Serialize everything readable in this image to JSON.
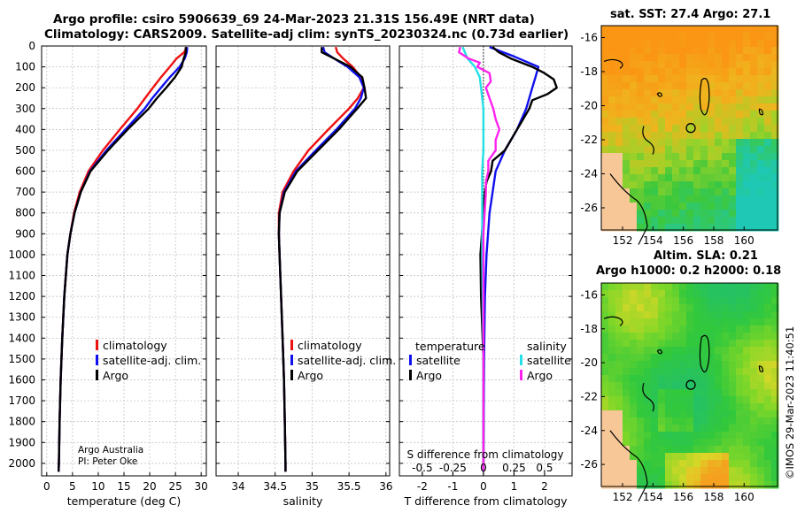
{
  "header": {
    "line1": "Argo profile: csiro 5906639_69 24-Mar-2023 21.31S 156.49E (NRT data)",
    "line2": "Climatology: CARS2009. Satellite-adj clim: synTS_20230324.nc (0.73d earlier)"
  },
  "colors": {
    "climatology": "#ee1111",
    "satellite": "#1010ee",
    "argo": "#000000",
    "sat_salinity": "#22e0e6",
    "argo_salinity": "#ff22ee",
    "land": "#f7c797"
  },
  "chart_data": [
    {
      "type": "line",
      "id": "temperature",
      "xlabel": "temperature (deg C)",
      "ylabel": "",
      "xlim": [
        -1,
        31
      ],
      "ylim": [
        2060,
        0
      ],
      "xticks": [
        0,
        5,
        10,
        15,
        20,
        25,
        30
      ],
      "yticks": [
        0,
        100,
        200,
        300,
        400,
        500,
        600,
        700,
        800,
        900,
        1000,
        1100,
        1200,
        1300,
        1400,
        1500,
        1600,
        1700,
        1800,
        1900,
        2000
      ],
      "legend": [
        "climatology",
        "satellite-adj. clim.",
        "Argo"
      ],
      "legend_position": "lower-right",
      "annotations": [
        "Argo Australia",
        "PI: Peter Oke"
      ],
      "series": [
        {
          "name": "climatology",
          "color": "#ee1111",
          "depth": [
            5,
            30,
            60,
            100,
            150,
            200,
            250,
            300,
            400,
            500,
            600,
            700,
            800,
            900,
            1000,
            1200,
            1400,
            1600,
            1800,
            2000,
            2040
          ],
          "values": [
            27.2,
            26.7,
            25.2,
            23.9,
            22.2,
            20.6,
            19.1,
            17.6,
            14.2,
            10.9,
            8.1,
            6.4,
            5.3,
            4.6,
            4.0,
            3.4,
            3.0,
            2.7,
            2.5,
            2.35,
            2.3
          ]
        },
        {
          "name": "satellite-adj. clim.",
          "color": "#1010ee",
          "depth": [
            5,
            30,
            60,
            100,
            150,
            200,
            250,
            300,
            400,
            500,
            600,
            700,
            800,
            900,
            1000,
            1200,
            1400,
            1600,
            1800,
            2000,
            2040
          ],
          "values": [
            27.3,
            27.2,
            26.8,
            25.8,
            23.9,
            22.2,
            20.5,
            19.0,
            15.3,
            11.6,
            8.4,
            6.6,
            5.4,
            4.6,
            4.0,
            3.4,
            3.0,
            2.7,
            2.5,
            2.35,
            2.3
          ]
        },
        {
          "name": "Argo",
          "color": "#000000",
          "depth": [
            5,
            30,
            60,
            100,
            150,
            200,
            250,
            300,
            400,
            500,
            600,
            700,
            800,
            900,
            1000,
            1200,
            1400,
            1600,
            1800,
            2000,
            2040
          ],
          "values": [
            27.0,
            27.0,
            26.6,
            26.2,
            24.9,
            23.2,
            21.4,
            19.8,
            15.7,
            11.9,
            8.5,
            6.6,
            5.4,
            4.6,
            4.0,
            3.4,
            3.0,
            2.7,
            2.5,
            2.35,
            2.3
          ]
        }
      ]
    },
    {
      "type": "line",
      "id": "salinity",
      "xlabel": "salinity",
      "xlim": [
        33.7,
        36.05
      ],
      "ylim": [
        2060,
        0
      ],
      "xticks": [
        34,
        34.5,
        35,
        35.5,
        36
      ],
      "legend": [
        "climatology",
        "satellite-adj. clim.",
        "Argo"
      ],
      "legend_position": "lower-right",
      "series": [
        {
          "name": "climatology",
          "color": "#ee1111",
          "depth": [
            5,
            30,
            60,
            100,
            150,
            200,
            250,
            300,
            400,
            500,
            600,
            700,
            800,
            900,
            1000,
            1200,
            1400,
            1600,
            1800,
            2000,
            2040
          ],
          "values": [
            35.32,
            35.34,
            35.42,
            35.55,
            35.66,
            35.7,
            35.62,
            35.5,
            35.22,
            34.95,
            34.75,
            34.6,
            34.55,
            34.55,
            34.56,
            34.58,
            34.6,
            34.62,
            34.63,
            34.64,
            34.64
          ]
        },
        {
          "name": "satellite-adj. clim.",
          "color": "#1010ee",
          "depth": [
            5,
            30,
            60,
            100,
            150,
            200,
            250,
            300,
            400,
            500,
            600,
            700,
            800,
            900,
            1000,
            1200,
            1400,
            1600,
            1800,
            2000,
            2040
          ],
          "values": [
            35.15,
            35.17,
            35.3,
            35.48,
            35.64,
            35.7,
            35.66,
            35.58,
            35.33,
            35.05,
            34.78,
            34.62,
            34.56,
            34.55,
            34.56,
            34.58,
            34.6,
            34.62,
            34.63,
            34.64,
            34.64
          ]
        },
        {
          "name": "Argo",
          "color": "#000000",
          "depth": [
            5,
            30,
            60,
            100,
            150,
            200,
            250,
            300,
            400,
            500,
            600,
            700,
            800,
            900,
            1000,
            1200,
            1400,
            1600,
            1800,
            2000,
            2040
          ],
          "values": [
            35.13,
            35.13,
            35.3,
            35.52,
            35.68,
            35.71,
            35.73,
            35.61,
            35.36,
            35.08,
            34.8,
            34.63,
            34.56,
            34.55,
            34.56,
            34.58,
            34.6,
            34.62,
            34.63,
            34.64,
            34.64
          ]
        }
      ]
    },
    {
      "type": "line",
      "id": "difference",
      "xlabel": "T difference from climatology",
      "xlabel2": "S difference from climatology",
      "xlim": [
        -2.75,
        2.9
      ],
      "ylim": [
        2060,
        0
      ],
      "xticks": [
        -2,
        -1,
        0,
        1,
        2
      ],
      "s_ticks": [
        "-0.5",
        "-0.25",
        "0",
        "0.25",
        "0.5"
      ],
      "legend_temperature_title": "temperature",
      "legend_salinity_title": "salinity",
      "legend_temperature": [
        "satellite",
        "Argo"
      ],
      "legend_salinity": [
        "satellite",
        "Argo"
      ],
      "series": [
        {
          "name": "T satellite",
          "color": "#1010ee",
          "depth": [
            5,
            50,
            100,
            150,
            200,
            300,
            400,
            500,
            600,
            700,
            800,
            1000,
            1200,
            1500,
            2000,
            2040
          ],
          "values": [
            0.2,
            1.0,
            1.8,
            1.7,
            1.6,
            1.4,
            1.1,
            0.7,
            0.4,
            0.3,
            0.2,
            0.1,
            0.05,
            0.02,
            0,
            0
          ]
        },
        {
          "name": "T Argo",
          "color": "#000000",
          "depth": [
            5,
            30,
            60,
            100,
            130,
            160,
            200,
            230,
            260,
            300,
            350,
            400,
            450,
            500,
            550,
            600,
            650,
            700,
            800,
            900,
            1000,
            1200,
            1500,
            2000,
            2040
          ],
          "values": [
            0.3,
            0.5,
            0.9,
            1.6,
            2.0,
            2.3,
            2.4,
            2.1,
            1.6,
            1.5,
            1.3,
            1.1,
            0.9,
            0.7,
            0.3,
            0.25,
            0.1,
            0.05,
            0,
            -0.05,
            -0.1,
            -0.08,
            0,
            0,
            0
          ]
        },
        {
          "name": "S satellite",
          "color": "#22e0e6",
          "depth": [
            5,
            60,
            100,
            150,
            200,
            300,
            400,
            500,
            600,
            800,
            1000,
            1500,
            2000,
            2040
          ],
          "values": [
            -0.17,
            -0.13,
            -0.07,
            -0.03,
            -0.02,
            0,
            0,
            0,
            -0.01,
            -0.01,
            -0.01,
            0,
            0,
            0
          ]
        },
        {
          "name": "S Argo",
          "color": "#ff22ee",
          "depth": [
            5,
            30,
            60,
            80,
            100,
            130,
            170,
            200,
            250,
            300,
            350,
            400,
            450,
            500,
            550,
            600,
            650,
            700,
            800,
            900,
            1000,
            1200,
            1500,
            2000,
            2040
          ],
          "values": [
            -0.19,
            -0.2,
            -0.12,
            -0.03,
            -0.05,
            0.05,
            0.06,
            0.02,
            0.05,
            0.08,
            0.1,
            0.13,
            0.1,
            0.1,
            0.04,
            0.04,
            0.02,
            0.02,
            0.01,
            0,
            0,
            0,
            0,
            0,
            0
          ]
        }
      ]
    },
    {
      "type": "heatmap",
      "id": "sst_map",
      "title": "sat. SST: 27.4 Argo: 27.1",
      "xlim": [
        150.6,
        162.2
      ],
      "ylim": [
        -27.3,
        -15.3
      ],
      "xticks": [
        152,
        154,
        156,
        158,
        160
      ],
      "yticks": [
        -16,
        -18,
        -20,
        -22,
        -24,
        -26
      ],
      "marker": [
        156.49,
        -21.31
      ]
    },
    {
      "type": "heatmap",
      "id": "sla_map",
      "title": "Altim. SLA: 0.21",
      "subtitle": "Argo h1000: 0.2 h2000: 0.18",
      "xlim": [
        150.6,
        162.2
      ],
      "ylim": [
        -27.3,
        -15.3
      ],
      "xticks": [
        152,
        154,
        156,
        158,
        160
      ],
      "yticks": [
        -16,
        -18,
        -20,
        -22,
        -24,
        -26
      ],
      "marker": [
        156.49,
        -21.31
      ]
    }
  ],
  "credit": "©IMOS 29-Mar-2023 11:40:51"
}
